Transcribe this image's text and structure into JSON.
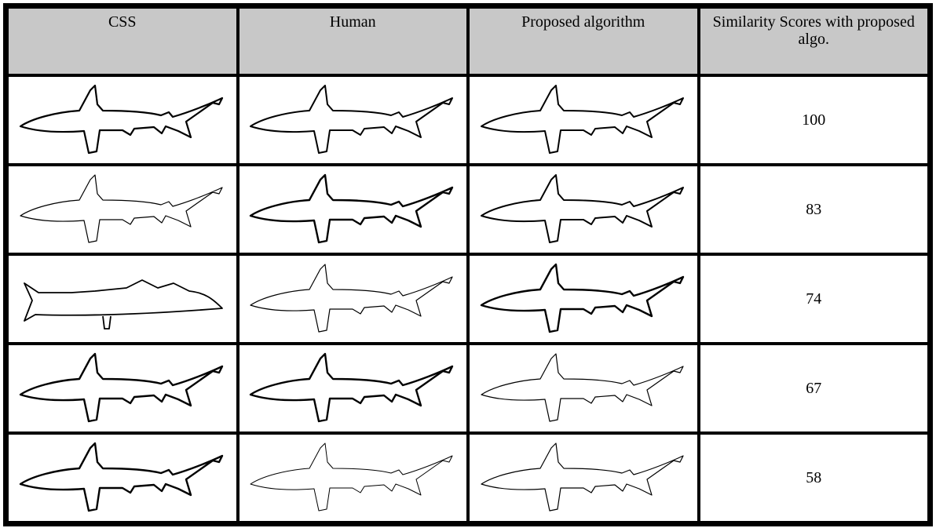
{
  "table": {
    "header": [
      "CSS",
      "Human",
      "Proposed algorithm",
      "Similarity Scores with proposed algo."
    ],
    "rows": [
      [
        100
      ],
      [
        83
      ],
      [
        74
      ],
      [
        67
      ],
      [
        58
      ]
    ]
  }
}
